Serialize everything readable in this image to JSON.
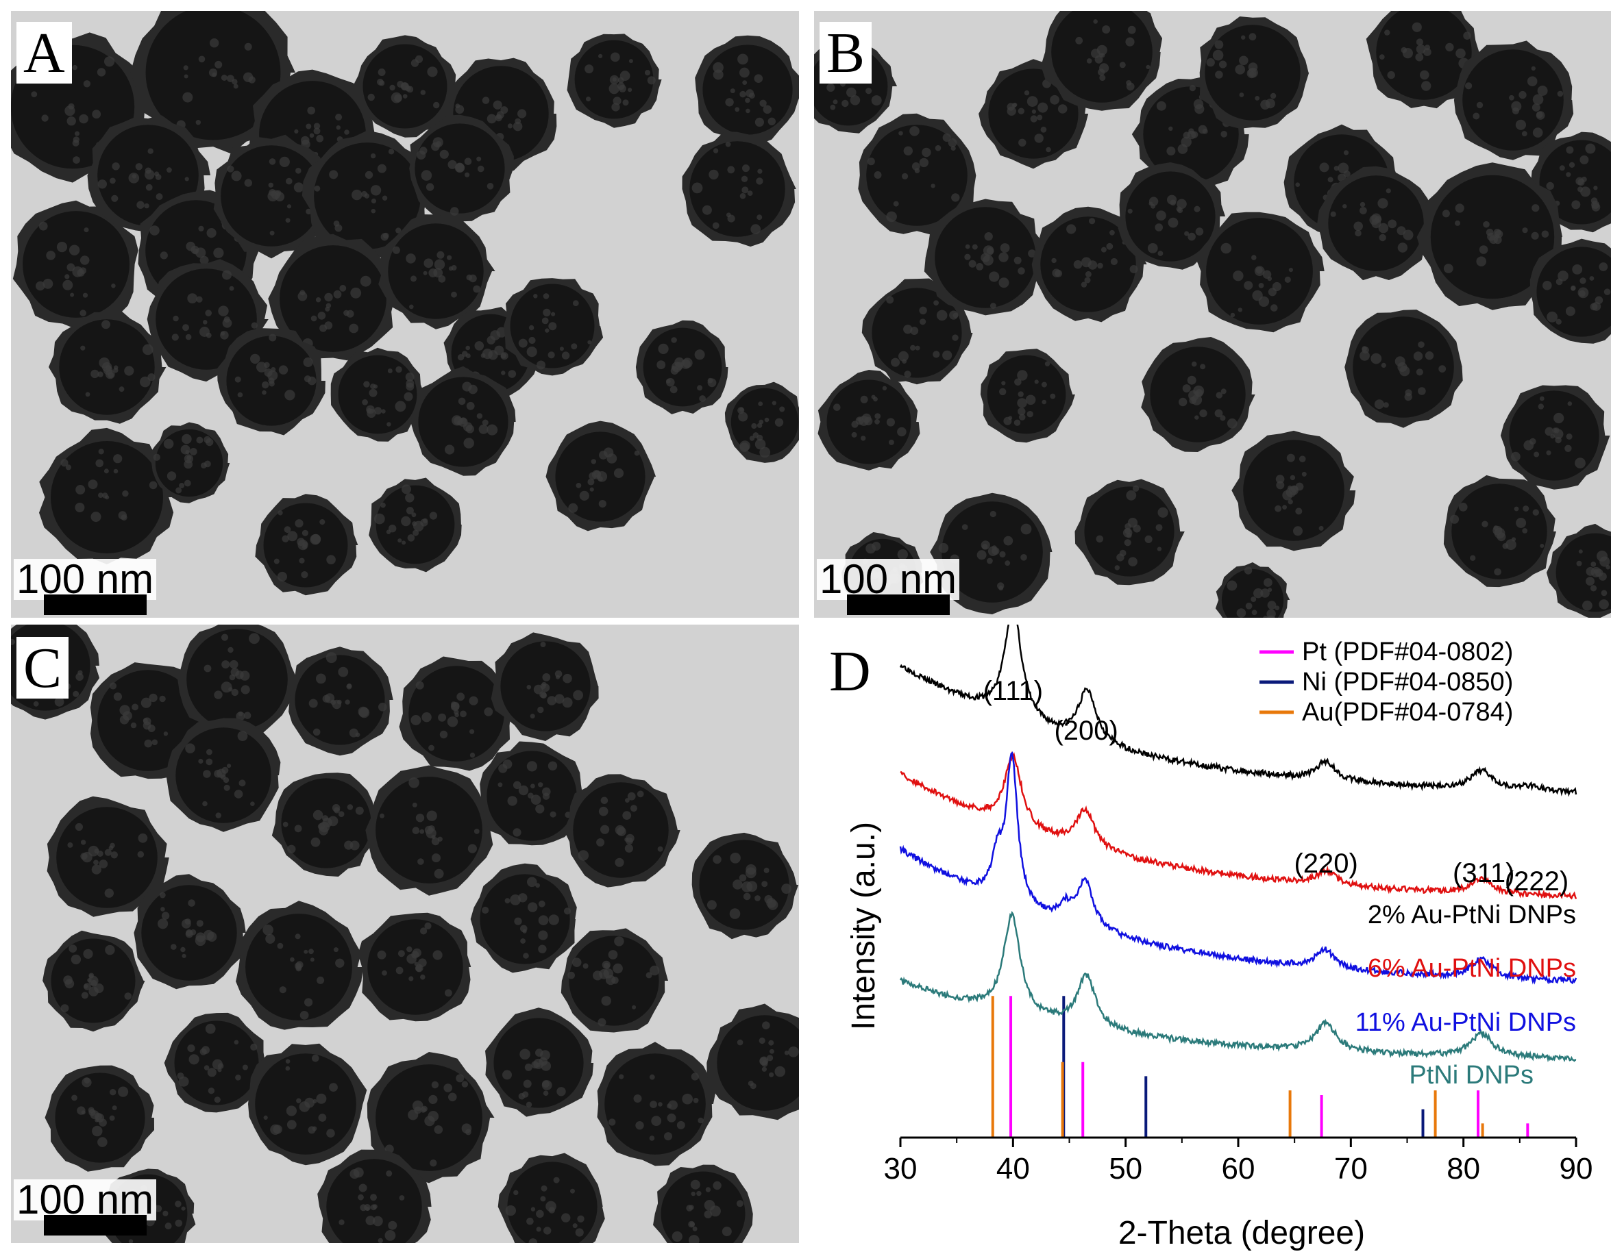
{
  "panels": {
    "A": {
      "label": "A",
      "scale_bar": "100 nm"
    },
    "B": {
      "label": "B",
      "scale_bar": "100 nm"
    },
    "C": {
      "label": "C",
      "scale_bar": "100 nm"
    },
    "D": {
      "label": "D"
    }
  },
  "chart_data": {
    "type": "line",
    "xlabel": "2-Theta (degree)",
    "ylabel": "Intensity (a.u.)",
    "xlim": [
      30,
      90
    ],
    "xticks": [
      "30",
      "40",
      "50",
      "60",
      "70",
      "80",
      "90"
    ],
    "grid": false,
    "legend_position": "top-right",
    "peak_labels": [
      {
        "text": "(111)",
        "x": 40
      },
      {
        "text": "(200)",
        "x": 46.5
      },
      {
        "text": "(220)",
        "x": 67.8
      },
      {
        "text": "(311)",
        "x": 81.8
      },
      {
        "text": "(222)",
        "x": 86.5
      }
    ],
    "series": [
      {
        "name": "2% Au-PtNi DNPs",
        "color": "#000000",
        "baseline": [
          1.0,
          0.72
        ],
        "peaks": [
          [
            40.0,
            0.24,
            0.9
          ],
          [
            46.6,
            0.11,
            1.0
          ],
          [
            67.8,
            0.04,
            1.0
          ],
          [
            81.7,
            0.04,
            1.2
          ],
          [
            86.0,
            0.01,
            1.0
          ]
        ]
      },
      {
        "name": "6% Au-PtNi DNPs",
        "color": "#e01010",
        "baseline": [
          0.77,
          0.5
        ],
        "peaks": [
          [
            40.0,
            0.15,
            0.9
          ],
          [
            46.4,
            0.08,
            1.0
          ],
          [
            67.8,
            0.03,
            1.0
          ],
          [
            81.7,
            0.03,
            1.2
          ]
        ]
      },
      {
        "name": "11% Au-PtNi DNPs",
        "color": "#1010e0",
        "baseline": [
          0.61,
          0.32
        ],
        "peaks": [
          [
            38.6,
            0.08,
            0.6
          ],
          [
            39.9,
            0.31,
            0.6
          ],
          [
            44.6,
            0.03,
            0.6
          ],
          [
            46.4,
            0.1,
            0.9
          ],
          [
            67.7,
            0.04,
            1.0
          ],
          [
            81.6,
            0.04,
            1.1
          ]
        ]
      },
      {
        "name": "PtNi DNPs",
        "color": "#2b7a7a",
        "baseline": [
          0.33,
          0.16
        ],
        "peaks": [
          [
            39.9,
            0.21,
            0.9
          ],
          [
            46.5,
            0.11,
            1.0
          ],
          [
            67.8,
            0.06,
            1.1
          ],
          [
            81.6,
            0.05,
            1.2
          ]
        ]
      }
    ],
    "reference_patterns": [
      {
        "name": "Pt (PDF#04-0802)",
        "color": "#ff00ff",
        "lines": [
          [
            39.8,
            0.3
          ],
          [
            46.2,
            0.16
          ],
          [
            67.4,
            0.09
          ],
          [
            81.3,
            0.1
          ],
          [
            85.7,
            0.03
          ]
        ]
      },
      {
        "name": "Ni (PDF#04-0850)",
        "color": "#0a1a7a",
        "lines": [
          [
            44.5,
            0.3
          ],
          [
            51.8,
            0.13
          ],
          [
            76.4,
            0.06
          ]
        ]
      },
      {
        "name": "Au(PDF#04-0784)",
        "color": "#e8780a",
        "lines": [
          [
            38.2,
            0.3
          ],
          [
            44.4,
            0.16
          ],
          [
            64.6,
            0.1
          ],
          [
            77.5,
            0.1
          ],
          [
            81.7,
            0.03
          ]
        ]
      }
    ]
  }
}
